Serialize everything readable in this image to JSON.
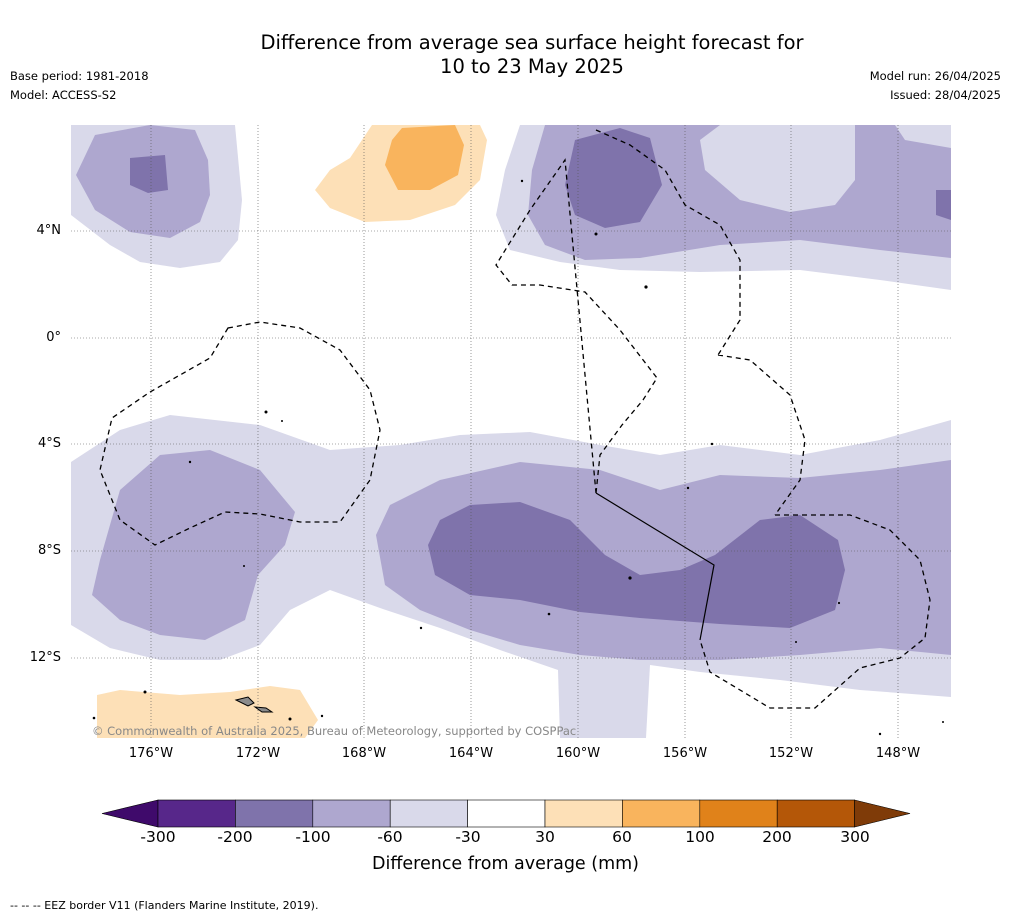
{
  "header": {
    "title_line1": "Difference from average sea surface height forecast for",
    "title_line2": "10 to 23 May 2025",
    "base_period": "Base period: 1981-2018",
    "model": "Model: ACCESS-S2",
    "model_run": "Model run: 26/04/2025",
    "issued": "Issued: 28/04/2025"
  },
  "map": {
    "lat_labels": [
      "4°N",
      "0°",
      "4°S",
      "8°S",
      "12°S"
    ],
    "lon_labels": [
      "176°W",
      "172°W",
      "168°W",
      "164°W",
      "160°W",
      "156°W",
      "152°W",
      "148°W"
    ],
    "credit": "© Commonwealth of Australia 2025, Bureau of Meteorology, supported by COSPPac",
    "colors": {
      "neg_300_200": "#3f0a6b",
      "neg_200_100": "#57278a",
      "neg_100_60": "#7f73ab",
      "neg_60_30": "#aea7cf",
      "neg_30_0": "#d9d9ea",
      "pos_30_60": "#fde0b7",
      "pos_60_100": "#f9b45d",
      "pos_100_200": "#e0821a",
      "pos_200_300": "#b45708",
      "land": "#8c8c8c"
    }
  },
  "colorbar": {
    "ticks": [
      "-300",
      "-200",
      "-100",
      "-60",
      "-30",
      "30",
      "60",
      "100",
      "200",
      "300"
    ],
    "label": "Difference from average (mm)",
    "bins": [
      "#3f0a6b",
      "#57278a",
      "#7f73ab",
      "#aea7cf",
      "#d9d9ea",
      "#ffffff",
      "#fde0b7",
      "#f9b45d",
      "#e0821a",
      "#b45708",
      "#7f3b08"
    ]
  },
  "footnote": "--  --  -- EEZ border V11 (Flanders Marine Institute, 2019)."
}
